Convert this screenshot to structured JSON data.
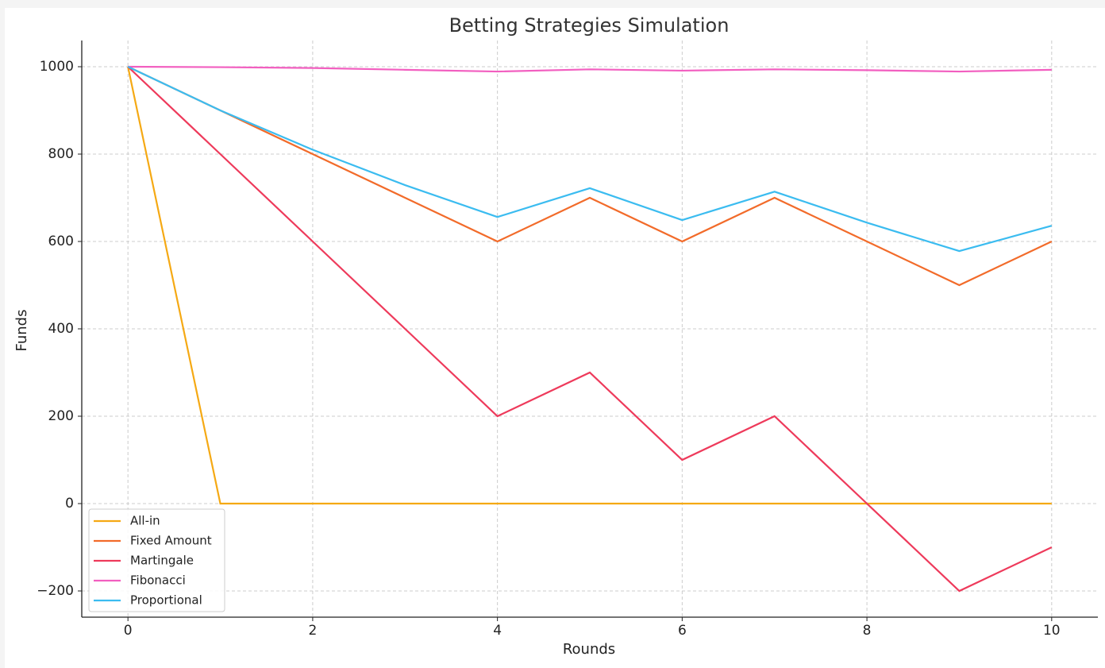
{
  "chart_data": {
    "type": "line",
    "title": "Betting Strategies Simulation",
    "x_label": "Rounds",
    "y_label": "Funds",
    "x": [
      0,
      1,
      2,
      3,
      4,
      5,
      6,
      7,
      8,
      9,
      10
    ],
    "series": [
      {
        "name": "All-in",
        "color": "#f5a914",
        "values": [
          1000,
          0,
          0,
          0,
          0,
          0,
          0,
          0,
          0,
          0,
          0
        ]
      },
      {
        "name": "Fixed Amount",
        "color": "#f26b2a",
        "values": [
          1000,
          900,
          800,
          700,
          600,
          700,
          600,
          700,
          600,
          500,
          600
        ]
      },
      {
        "name": "Martingale",
        "color": "#ee3a5b",
        "values": [
          1000,
          800,
          600,
          400,
          200,
          300,
          100,
          200,
          0,
          -200,
          -100
        ]
      },
      {
        "name": "Fibonacci",
        "color": "#f25fc0",
        "values": [
          1000,
          999,
          997,
          993,
          989,
          994,
          991,
          994,
          992,
          989,
          993
        ]
      },
      {
        "name": "Proportional",
        "color": "#3bbcf0",
        "values": [
          1000,
          900,
          810,
          729,
          656,
          722,
          649,
          714,
          643,
          578,
          636
        ]
      }
    ],
    "xlim": [
      -0.5,
      10.5
    ],
    "ylim": [
      -260,
      1060
    ],
    "xticks": [
      0,
      2,
      4,
      6,
      8,
      10
    ],
    "yticks": [
      {
        "value": -200,
        "label": "−200"
      },
      0,
      200,
      400,
      600,
      800,
      1000
    ],
    "grid": true,
    "legend": "lower-left"
  }
}
